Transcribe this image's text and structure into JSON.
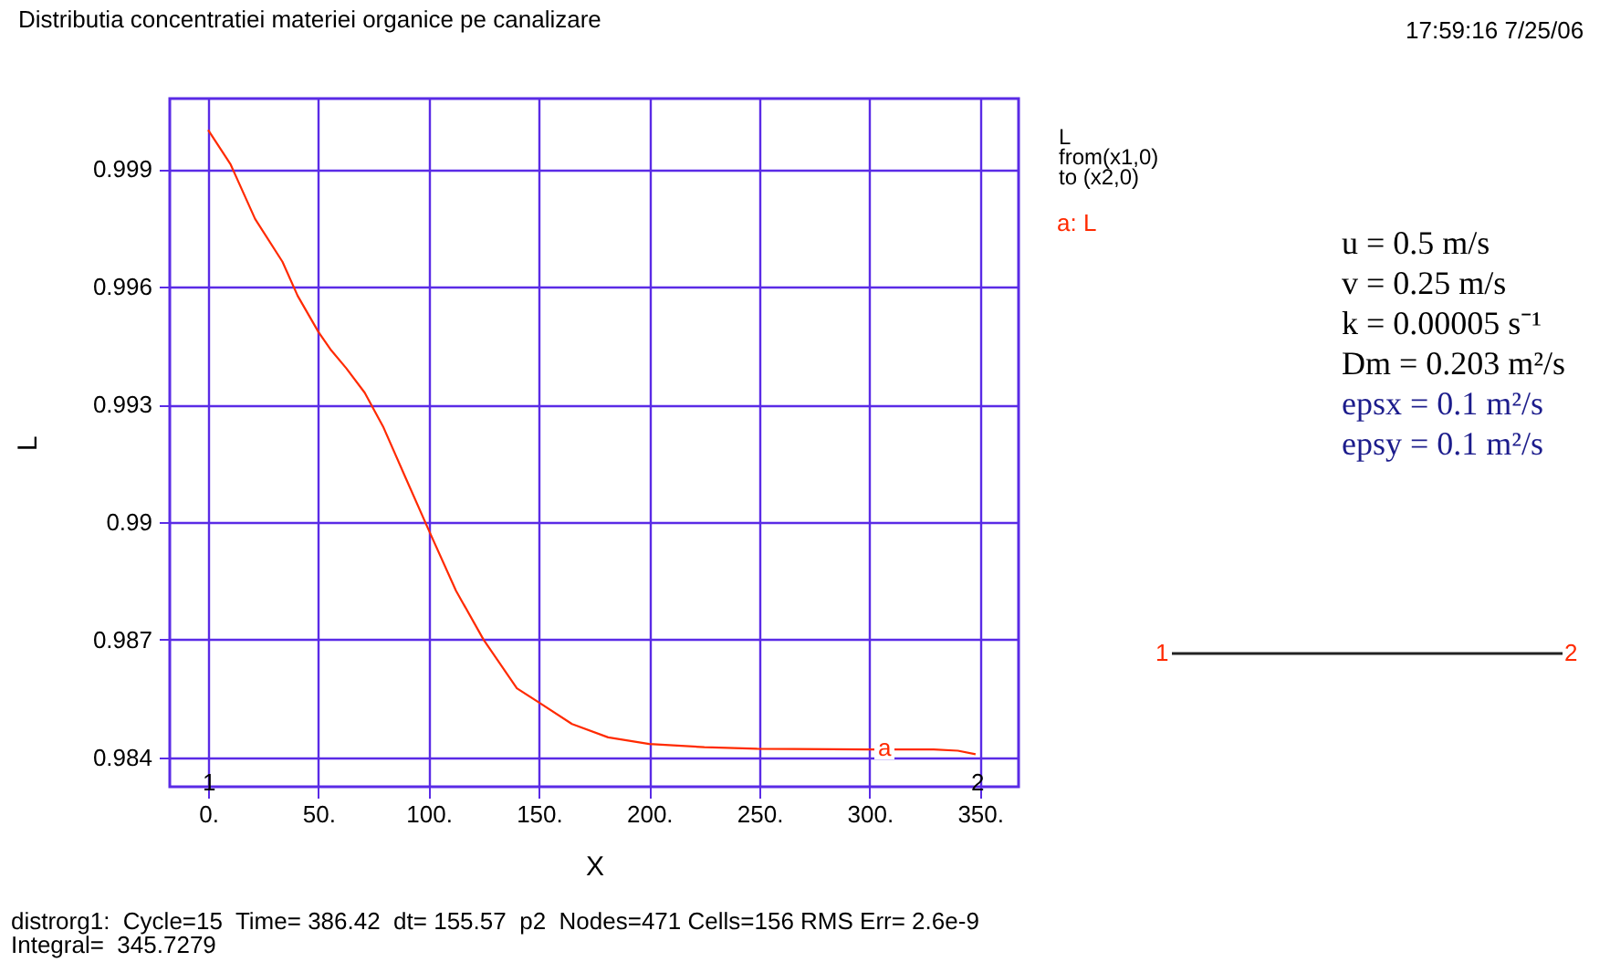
{
  "chart_data": {
    "type": "line",
    "title": "Distributia concentratiei materiei organice pe canalizare",
    "xlabel": "X",
    "ylabel": "L",
    "legend_title": "L\nfrom(x1,0)\n to (x2,0)",
    "legend": "right",
    "grid": true,
    "xlim": [
      -17.4,
      367.5
    ],
    "ylim": [
      0.98325,
      1.0008
    ],
    "xticks": [
      {
        "value": 0,
        "label": "0."
      },
      {
        "value": 50,
        "label": "50."
      },
      {
        "value": 100,
        "label": "100."
      },
      {
        "value": 150,
        "label": "150."
      },
      {
        "value": 200,
        "label": "200."
      },
      {
        "value": 250,
        "label": "250."
      },
      {
        "value": 300,
        "label": "300."
      },
      {
        "value": 350,
        "label": "350."
      }
    ],
    "yticks": [
      0.984,
      0.987,
      0.99,
      0.993,
      0.996,
      0.999
    ],
    "series": [
      {
        "name": "a: L",
        "color": "#ff2a00",
        "x": [
          0,
          10.2,
          21.3,
          33.7,
          40.6,
          50,
          55.8,
          62.7,
          71,
          79.3,
          89,
          100,
          112.4,
          124.9,
          140,
          150,
          165,
          181.4,
          200,
          225,
          249,
          299,
          329,
          340,
          348
        ],
        "values": [
          1.0,
          0.99912,
          0.99773,
          0.99664,
          0.99577,
          0.99485,
          0.99438,
          0.99392,
          0.9933,
          0.99244,
          0.9912,
          0.9898,
          0.98825,
          0.987,
          0.98576,
          0.9854,
          0.98485,
          0.98451,
          0.98434,
          0.98426,
          0.98422,
          0.9842,
          0.9842,
          0.98417,
          0.98408
        ]
      }
    ],
    "annotations": [
      "17:59:16 7/25/06",
      "u = 0.5 m/s",
      "v = 0.25 m/s",
      "k = 0.00005 s⁻¹",
      "Dm = 0.203 m²/s",
      "epsx = 0.1 m²/s",
      "epsy = 0.1 m²/s",
      "1",
      "2",
      "distrorg1:  Cycle=15  Time= 386.42  dt= 155.57  p2  Nodes=471 Cells=156 RMS Err= 2.6e-9",
      "Integral=  345.7279",
      "a",
      "1",
      "2"
    ]
  }
}
